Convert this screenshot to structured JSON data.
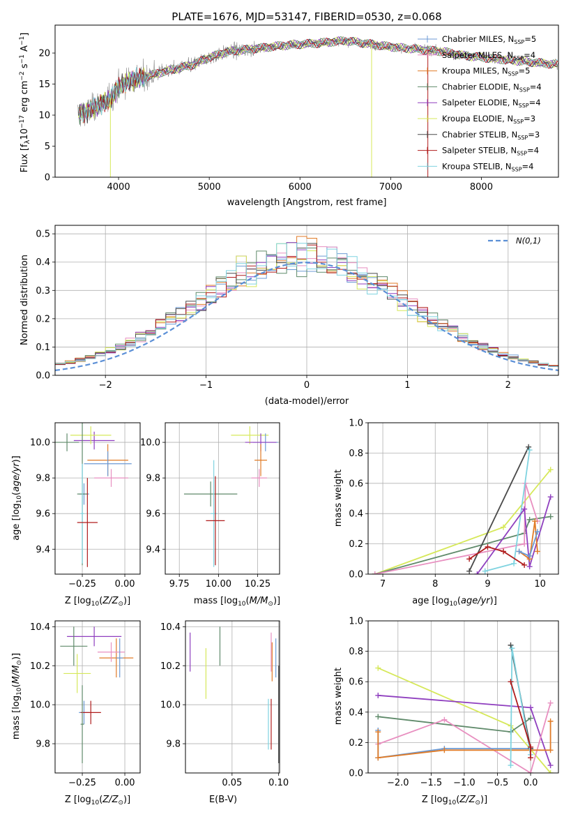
{
  "chart_data": [
    {
      "type": "line",
      "title": "PLATE=1676, MJD=53147, FIBERID=0530, z=0.068",
      "xlabel": "wavelength [Angstrom, rest frame]",
      "ylabel": "Flux [f_λ 10^-17 erg cm^-2 s^-1 A^-1]",
      "xlim": [
        3300,
        8850
      ],
      "ylim": [
        0,
        24.5
      ],
      "xticks": [
        4000,
        5000,
        6000,
        7000,
        8000
      ],
      "yticks": [
        0,
        5,
        10,
        15,
        20
      ],
      "grid": false,
      "legend_position": "top-right",
      "data_color": "#808080",
      "spectrum_knots": {
        "x": [
          3550,
          3650,
          3800,
          3900,
          4000,
          4100,
          4300,
          4500,
          4800,
          5000,
          5200,
          5500,
          5800,
          6000,
          6200,
          6500,
          6700,
          7000,
          7300,
          7600,
          7800,
          8200,
          8800
        ],
        "y": [
          10.2,
          10.5,
          11.8,
          12.5,
          14.5,
          15.5,
          16.2,
          17.0,
          18.0,
          19.3,
          20.2,
          20.7,
          21.2,
          21.4,
          21.6,
          22.0,
          21.6,
          21.0,
          20.6,
          20.2,
          19.6,
          19.0,
          18.2
        ]
      },
      "series": [
        {
          "name": "Chabrier MILES, N_SSP=5",
          "color": "#6b9ad4"
        },
        {
          "name": "Salpeter MILES, N_SSP=4",
          "color": "#e88fc0"
        },
        {
          "name": "Kroupa MILES, N_SSP=5",
          "color": "#e07b27"
        },
        {
          "name": "Chabrier ELODIE, N_SSP=4",
          "color": "#5f8a6a"
        },
        {
          "name": "Salpeter ELODIE, N_SSP=4",
          "color": "#8f3fbf"
        },
        {
          "name": "Kroupa ELODIE, N_SSP=3",
          "color": "#d6e85a"
        },
        {
          "name": "Chabrier STELIB, N_SSP=3",
          "color": "#4a4a4a"
        },
        {
          "name": "Salpeter STELIB, N_SSP=4",
          "color": "#b01c1c"
        },
        {
          "name": "Kroupa STELIB, N_SSP=4",
          "color": "#7fd3e0"
        }
      ]
    },
    {
      "type": "histogram",
      "xlabel": "(data-model)/error",
      "ylabel": "Normed distribution",
      "xlim": [
        -2.5,
        2.5
      ],
      "ylim": [
        0,
        0.53
      ],
      "xticks": [
        -2,
        -1,
        0,
        1,
        2
      ],
      "yticks": [
        0.0,
        0.1,
        0.2,
        0.3,
        0.4,
        0.5
      ],
      "grid": true,
      "legend": "N(0,1)",
      "legend_position": "top-right",
      "normal_curve": {
        "mean": 0,
        "sigma": 1,
        "color": "#5b8fd6"
      },
      "bin_width": 0.1
    },
    {
      "type": "scatter",
      "xlabel": "Z [log10(Z/Z⊙)]",
      "ylabel": "age  [log10(age/yr)]",
      "xlim": [
        -0.41,
        0.09
      ],
      "ylim": [
        9.26,
        10.11
      ],
      "xticks": [
        -0.25,
        0.0
      ],
      "yticks": [
        9.4,
        9.6,
        9.8,
        10.0
      ],
      "grid": true,
      "points": [
        {
          "x": -0.24,
          "y": 9.71,
          "xerr": 0.03,
          "yerr": 0.06,
          "color": "#6b9ad4"
        },
        {
          "x": -0.34,
          "y": 10.0,
          "xerr": 0.07,
          "yerr": 0.05,
          "color": "#5f8a6a"
        },
        {
          "x": -0.18,
          "y": 10.01,
          "xerr": 0.12,
          "yerr": 0.05,
          "color": "#8f3fbf"
        },
        {
          "x": -0.2,
          "y": 10.04,
          "xerr": 0.12,
          "yerr": 0.05,
          "color": "#d6e85a"
        },
        {
          "x": -0.1,
          "y": 9.9,
          "xerr": 0.12,
          "yerr": 0.09,
          "color": "#e07b27"
        },
        {
          "x": -0.1,
          "y": 9.88,
          "xerr": 0.14,
          "yerr": 0.07,
          "color": "#6b9ad4"
        },
        {
          "x": -0.08,
          "y": 9.8,
          "xerr": 0.1,
          "yerr": 0.05,
          "color": "#e88fc0"
        },
        {
          "x": -0.25,
          "y": 9.71,
          "xerr": 0.03,
          "yerr": 0.4,
          "color": "#5f8a6a"
        },
        {
          "x": -0.25,
          "y": 9.6,
          "xerr": 0.01,
          "yerr": 0.28,
          "color": "#7fd3e0"
        },
        {
          "x": -0.22,
          "y": 9.55,
          "xerr": 0.06,
          "yerr": 0.25,
          "color": "#b01c1c"
        }
      ]
    },
    {
      "type": "scatter",
      "xlabel": "mass [log10(M/M⊙)]",
      "ylabel": "",
      "xlim": [
        9.66,
        10.39
      ],
      "ylim": [
        9.26,
        10.11
      ],
      "xticks": [
        9.75,
        10.0,
        10.25
      ],
      "yticks": [
        9.4,
        9.6,
        9.8,
        10.0
      ],
      "grid": true,
      "points": [
        {
          "x": 10.2,
          "y": 10.04,
          "xerr": 0.12,
          "yerr": 0.05,
          "color": "#d6e85a"
        },
        {
          "x": 10.3,
          "y": 10.0,
          "xerr": 0.08,
          "yerr": 0.05,
          "color": "#6b9ad4"
        },
        {
          "x": 10.27,
          "y": 10.0,
          "xerr": 0.1,
          "yerr": 0.05,
          "color": "#8f3fbf"
        },
        {
          "x": 10.27,
          "y": 9.9,
          "xerr": 0.04,
          "yerr": 0.09,
          "color": "#e07b27"
        },
        {
          "x": 10.26,
          "y": 9.8,
          "xerr": 0.05,
          "yerr": 0.05,
          "color": "#e88fc0"
        },
        {
          "x": 9.95,
          "y": 9.71,
          "xerr": 0.17,
          "yerr": 0.07,
          "color": "#5f8a6a"
        },
        {
          "x": 9.97,
          "y": 9.6,
          "xerr": 0.02,
          "yerr": 0.3,
          "color": "#7fd3e0"
        },
        {
          "x": 9.98,
          "y": 9.56,
          "xerr": 0.06,
          "yerr": 0.25,
          "color": "#b01c1c"
        }
      ]
    },
    {
      "type": "line",
      "xlabel": "age  [log10(age/yr)]",
      "ylabel": "mass weight",
      "xlim": [
        6.72,
        10.35
      ],
      "ylim": [
        0,
        1.0
      ],
      "xticks": [
        7,
        8,
        9,
        10
      ],
      "yticks": [
        0.0,
        0.2,
        0.4,
        0.6,
        0.8,
        1.0
      ],
      "grid": true,
      "series": [
        {
          "color": "#d6e85a",
          "x": [
            6.85,
            9.3,
            10.2
          ],
          "y": [
            0.0,
            0.31,
            0.69
          ]
        },
        {
          "color": "#5f8a6a",
          "x": [
            6.85,
            9.7,
            9.8,
            10.2
          ],
          "y": [
            0.0,
            0.27,
            0.36,
            0.38
          ]
        },
        {
          "color": "#e88fc0",
          "x": [
            6.85,
            9.7,
            9.72,
            9.95
          ],
          "y": [
            0.0,
            0.2,
            0.6,
            0.35
          ]
        },
        {
          "color": "#4a4a4a",
          "x": [
            8.65,
            9.78
          ],
          "y": [
            0.02,
            0.84
          ]
        },
        {
          "color": "#7fd3e0",
          "x": [
            8.95,
            9.5,
            9.8
          ],
          "y": [
            0.02,
            0.07,
            0.82
          ]
        },
        {
          "color": "#8f3fbf",
          "x": [
            8.8,
            9.7,
            9.8,
            10.2
          ],
          "y": [
            0.0,
            0.43,
            0.05,
            0.51
          ]
        },
        {
          "color": "#b01c1c",
          "x": [
            8.65,
            9.0,
            9.3,
            9.7
          ],
          "y": [
            0.1,
            0.18,
            0.15,
            0.06
          ]
        },
        {
          "color": "#e07b27",
          "x": [
            9.6,
            9.8,
            9.9,
            9.95
          ],
          "y": [
            0.15,
            0.1,
            0.35,
            0.15
          ]
        },
        {
          "color": "#6b9ad4",
          "x": [
            9.6,
            9.8,
            9.95
          ],
          "y": [
            0.15,
            0.12,
            0.28
          ]
        }
      ]
    },
    {
      "type": "scatter",
      "xlabel": "Z [log10(Z/Z⊙)]",
      "ylabel": "mass [log10(M/M⊙)]",
      "xlim": [
        -0.41,
        0.09
      ],
      "ylim": [
        9.65,
        10.43
      ],
      "xticks": [
        -0.25,
        0.0
      ],
      "yticks": [
        9.8,
        10.0,
        10.2,
        10.4
      ],
      "grid": true,
      "points": [
        {
          "x": -0.18,
          "y": 10.35,
          "xerr": 0.16,
          "yerr": 0.05,
          "color": "#8f3fbf"
        },
        {
          "x": -0.3,
          "y": 10.3,
          "xerr": 0.08,
          "yerr": 0.1,
          "color": "#5f8a6a"
        },
        {
          "x": -0.28,
          "y": 10.16,
          "xerr": 0.08,
          "yerr": 0.1,
          "color": "#d6e85a"
        },
        {
          "x": -0.05,
          "y": 10.24,
          "xerr": 0.1,
          "yerr": 0.1,
          "color": "#e07b27"
        },
        {
          "x": -0.08,
          "y": 10.27,
          "xerr": 0.08,
          "yerr": 0.05,
          "color": "#e88fc0"
        },
        {
          "x": -0.03,
          "y": 10.24,
          "xerr": 0.02,
          "yerr": 0.1,
          "color": "#6b9ad4"
        },
        {
          "x": -0.24,
          "y": 9.96,
          "xerr": 0.03,
          "yerr": 0.06,
          "color": "#6b9ad4"
        },
        {
          "x": -0.2,
          "y": 9.96,
          "xerr": 0.06,
          "yerr": 0.06,
          "color": "#b01c1c"
        },
        {
          "x": -0.25,
          "y": 9.9,
          "xerr": 0.01,
          "yerr": 0.2,
          "color": "#5f8a6a"
        }
      ]
    },
    {
      "type": "scatter",
      "xlabel": "E(B-V)",
      "ylabel": "",
      "xlim": [
        0.0,
        0.101
      ],
      "ylim": [
        9.65,
        10.43
      ],
      "xticks": [
        0.05,
        0.1
      ],
      "yticks": [
        9.8,
        10.0,
        10.2,
        10.4
      ],
      "grid": true,
      "points": [
        {
          "x": 0.005,
          "y": 10.27,
          "yerr": 0.1,
          "color": "#8f3fbf"
        },
        {
          "x": 0.022,
          "y": 10.16,
          "yerr": 0.13,
          "color": "#d6e85a"
        },
        {
          "x": 0.037,
          "y": 10.3,
          "yerr": 0.1,
          "color": "#5f8a6a"
        },
        {
          "x": 0.092,
          "y": 10.27,
          "yerr": 0.1,
          "color": "#e88fc0"
        },
        {
          "x": 0.093,
          "y": 10.22,
          "yerr": 0.1,
          "color": "#e07b27"
        },
        {
          "x": 0.097,
          "y": 10.24,
          "yerr": 0.1,
          "color": "#6b9ad4"
        },
        {
          "x": 0.089,
          "y": 9.9,
          "yerr": 0.13,
          "color": "#7fd3e0"
        },
        {
          "x": 0.092,
          "y": 9.9,
          "yerr": 0.13,
          "color": "#b01c1c"
        },
        {
          "x": 0.1,
          "y": 9.95,
          "yerr": 0.25,
          "color": "#4a4a4a"
        }
      ]
    },
    {
      "type": "line",
      "xlabel": "Z [log10(Z/Z⊙)]",
      "ylabel": "mass weight",
      "xlim": [
        -2.45,
        0.42
      ],
      "ylim": [
        0,
        1.0
      ],
      "xticks": [
        -2.0,
        -1.5,
        -1.0,
        -0.5,
        0.0
      ],
      "yticks": [
        0.0,
        0.2,
        0.4,
        0.6,
        0.8,
        1.0
      ],
      "grid": true,
      "series": [
        {
          "color": "#d6e85a",
          "x": [
            -2.3,
            -0.3,
            0.3
          ],
          "y": [
            0.69,
            0.31,
            0.0
          ]
        },
        {
          "color": "#8f3fbf",
          "x": [
            -2.3,
            0.0,
            0.3
          ],
          "y": [
            0.51,
            0.43,
            0.05
          ]
        },
        {
          "color": "#5f8a6a",
          "x": [
            -2.3,
            -0.3,
            0.0
          ],
          "y": [
            0.37,
            0.27,
            0.36
          ]
        },
        {
          "color": "#e88fc0",
          "x": [
            -2.3,
            -1.3,
            0.0,
            0.3
          ],
          "y": [
            0.19,
            0.35,
            0.0,
            0.46
          ]
        },
        {
          "color": "#6b9ad4",
          "x": [
            -2.3,
            -2.3,
            -1.3,
            0.0
          ],
          "y": [
            0.28,
            0.1,
            0.16,
            0.16
          ]
        },
        {
          "color": "#e07b27",
          "x": [
            -2.3,
            -2.3,
            -1.3,
            0.0,
            0.3,
            0.3
          ],
          "y": [
            0.27,
            0.1,
            0.15,
            0.15,
            0.15,
            0.34
          ]
        },
        {
          "color": "#4a4a4a",
          "x": [
            -0.3,
            0.0
          ],
          "y": [
            0.84,
            0.16
          ]
        },
        {
          "color": "#7fd3e0",
          "x": [
            -0.3,
            -0.28,
            0.0
          ],
          "y": [
            0.05,
            0.82,
            0.12
          ]
        },
        {
          "color": "#b01c1c",
          "x": [
            -0.3,
            0.0,
            0.0
          ],
          "y": [
            0.6,
            0.17,
            0.1
          ]
        }
      ]
    }
  ]
}
